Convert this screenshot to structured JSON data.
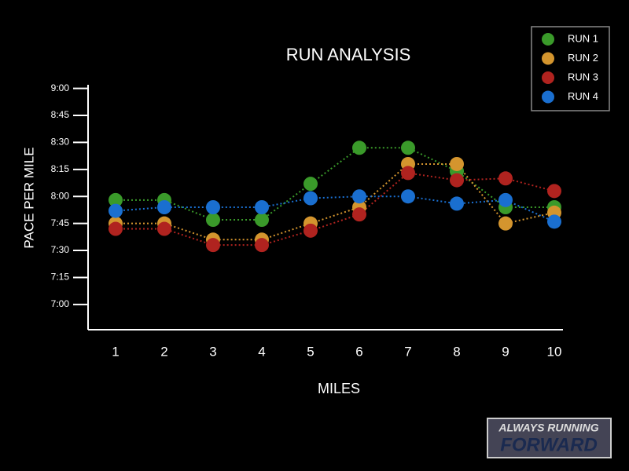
{
  "chart_data": {
    "type": "line",
    "title": "RUN ANALYSIS",
    "x_label": "MILES",
    "y_label": "PACE PER MILE",
    "categories": [
      "1",
      "2",
      "3",
      "4",
      "5",
      "6",
      "7",
      "8",
      "9",
      "10"
    ],
    "series": [
      {
        "name": "RUN 1",
        "color": "#3a9a2a",
        "values": [
          478,
          478,
          467,
          467,
          487,
          507,
          507,
          494,
          474,
          474
        ]
      },
      {
        "name": "RUN 2",
        "color": "#d4952e",
        "values": [
          465,
          465,
          456,
          456,
          465,
          474,
          498,
          498,
          465,
          471
        ]
      },
      {
        "name": "RUN 3",
        "color": "#b0231f",
        "values": [
          462,
          462,
          453,
          453,
          461,
          470,
          493,
          489,
          490,
          483
        ]
      },
      {
        "name": "RUN 4",
        "color": "#1a6fd0",
        "values": [
          472,
          474,
          474,
          474,
          479,
          480,
          480,
          476,
          478,
          466
        ]
      }
    ],
    "ylim": [
      406,
      542
    ],
    "yticks": [
      {
        "value": 420,
        "label": "7:00"
      },
      {
        "value": 435,
        "label": "7:15"
      },
      {
        "value": 450,
        "label": "7:30"
      },
      {
        "value": 465,
        "label": "7:45"
      },
      {
        "value": 480,
        "label": "8:00"
      },
      {
        "value": 495,
        "label": "8:15"
      },
      {
        "value": 510,
        "label": "8:30"
      },
      {
        "value": 525,
        "label": "8:45"
      },
      {
        "value": 540,
        "label": "9:00"
      }
    ],
    "legend": "top-right"
  },
  "logo": {
    "line1": "ALWAYS RUNNING",
    "line2": "FORWARD"
  }
}
